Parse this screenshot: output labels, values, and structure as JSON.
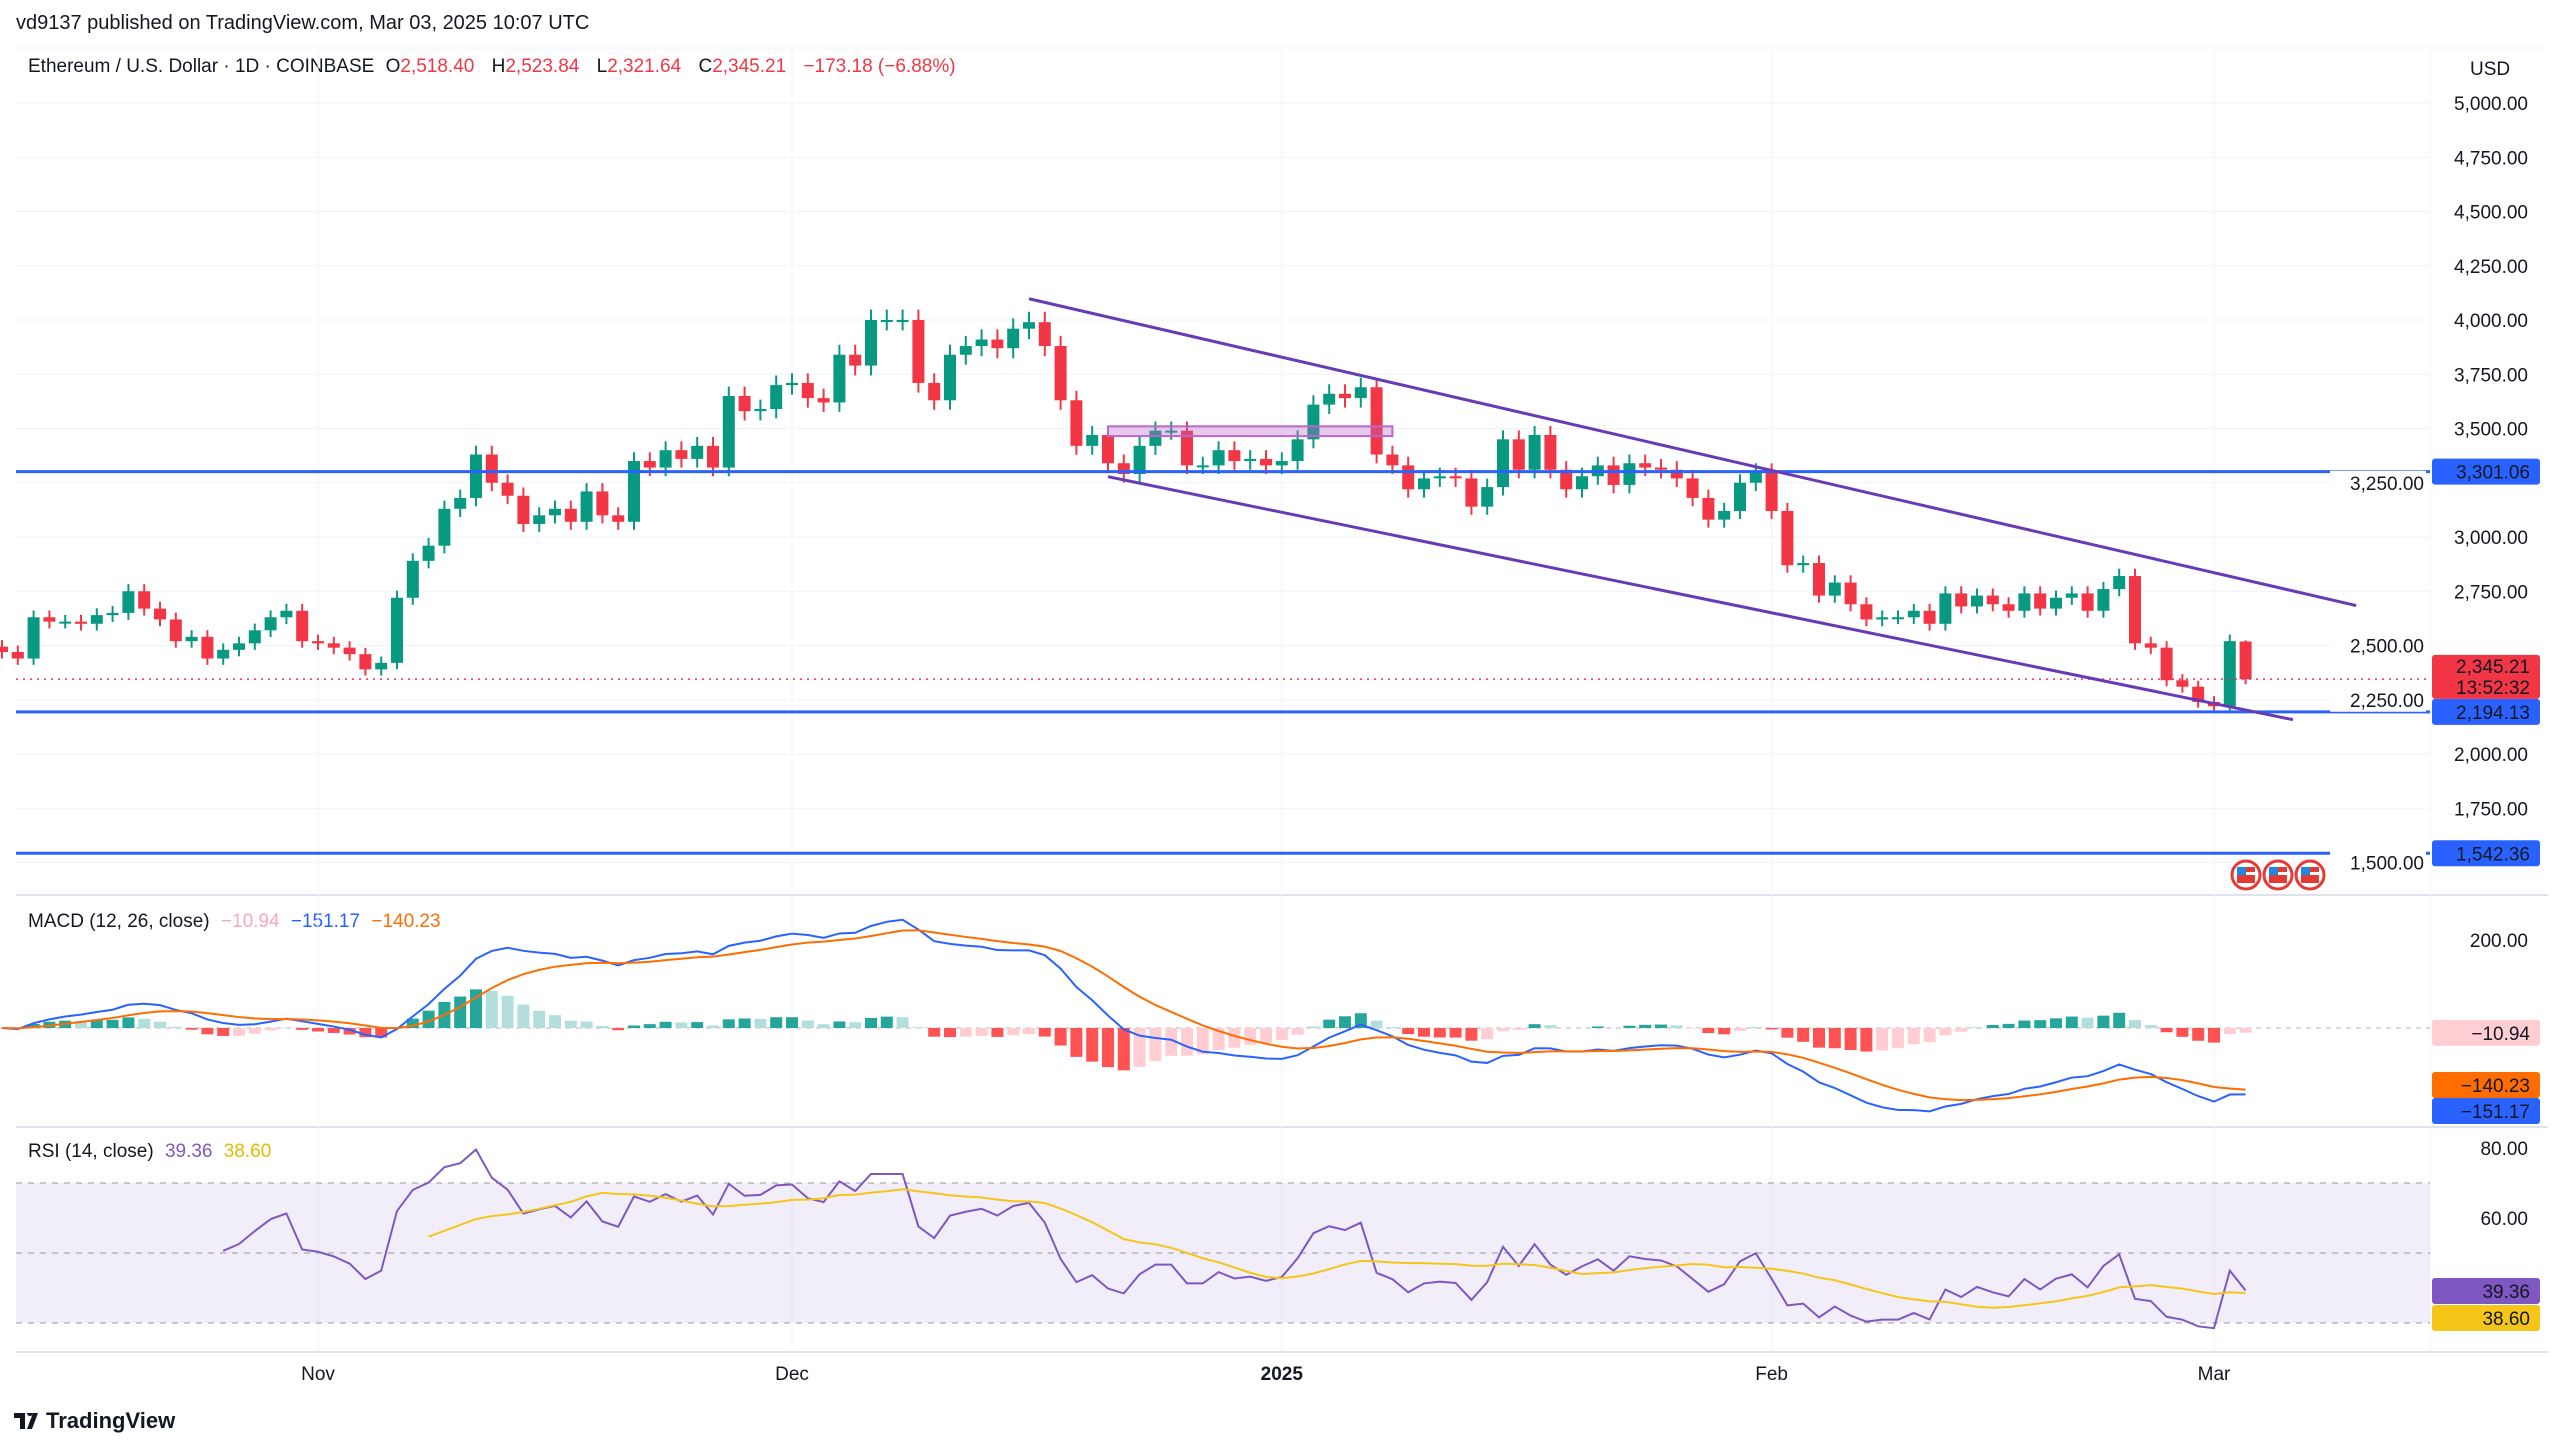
{
  "header": {
    "published": "vd9137 published on TradingView.com, Mar 03, 2025 10:07 UTC"
  },
  "legend": {
    "symbol": "Ethereum / U.S. Dollar · 1D · COINBASE",
    "o_label": "O",
    "o": "2,518.40",
    "h_label": "H",
    "h": "2,523.84",
    "l_label": "L",
    "l": "2,321.64",
    "c_label": "C",
    "c": "2,345.21",
    "change": "−173.18 (−6.88%)"
  },
  "currency": "USD",
  "colors": {
    "up": "#089981",
    "down": "#f23645",
    "hline": "#2962ff",
    "channel": "#673ab7",
    "macd": "#2962ff",
    "signal": "#ff6d00",
    "rsi": "#7e57c2",
    "rsi_ma": "#f5c518"
  },
  "chart_data": {
    "type": "candlestick",
    "x_ticks": [
      "Nov",
      "Dec",
      "2025",
      "Feb",
      "Mar"
    ],
    "price_ticks": [
      "5,000.00",
      "4,750.00",
      "4,500.00",
      "4,250.00",
      "4,000.00",
      "3,750.00",
      "3,500.00",
      "3,250.00",
      "3,000.00",
      "2,750.00",
      "2,500.00",
      "2,250.00",
      "2,000.00",
      "1,750.00",
      "1,500.00"
    ],
    "ylim": [
      1500,
      5000
    ],
    "closes": [
      2470,
      2440,
      2630,
      2610,
      2610,
      2600,
      2640,
      2650,
      2750,
      2670,
      2620,
      2520,
      2540,
      2440,
      2480,
      2510,
      2570,
      2630,
      2660,
      2520,
      2510,
      2490,
      2460,
      2390,
      2420,
      2720,
      2890,
      2960,
      3130,
      3180,
      3380,
      3250,
      3190,
      3060,
      3100,
      3130,
      3070,
      3210,
      3100,
      3070,
      3350,
      3320,
      3400,
      3360,
      3420,
      3320,
      3650,
      3580,
      3590,
      3700,
      3710,
      3640,
      3620,
      3840,
      3790,
      4000,
      4000,
      4000,
      3710,
      3630,
      3840,
      3880,
      3910,
      3870,
      3960,
      3990,
      3880,
      3630,
      3420,
      3470,
      3340,
      3290,
      3420,
      3490,
      3490,
      3330,
      3330,
      3400,
      3350,
      3360,
      3330,
      3350,
      3450,
      3610,
      3660,
      3640,
      3690,
      3380,
      3330,
      3220,
      3270,
      3280,
      3270,
      3140,
      3230,
      3450,
      3310,
      3470,
      3310,
      3220,
      3280,
      3330,
      3240,
      3340,
      3320,
      3310,
      3270,
      3180,
      3080,
      3120,
      3250,
      3300,
      3120,
      2870,
      2880,
      2730,
      2790,
      2690,
      2620,
      2630,
      2630,
      2660,
      2600,
      2740,
      2680,
      2730,
      2690,
      2660,
      2740,
      2670,
      2720,
      2740,
      2660,
      2760,
      2820,
      2510,
      2490,
      2340,
      2310,
      2240,
      2220,
      2520,
      2345.21
    ],
    "last_bar": {
      "open": 2518.4,
      "high": 2523.84,
      "low": 2321.64,
      "close": 2345.21
    },
    "horizontal_lines": [
      {
        "price": 3301.06,
        "label": "3,301.06"
      },
      {
        "price": 2194.13,
        "label": "2,194.13"
      },
      {
        "price": 1542.36,
        "label": "1,542.36"
      }
    ],
    "channel": [
      {
        "from": [
          "2024-12-16",
          4098
        ],
        "to": [
          "2025-03-10",
          2684
        ]
      },
      {
        "from": [
          "2024-12-21",
          3278
        ],
        "to": [
          "2025-03-06",
          2158
        ]
      }
    ],
    "zone": {
      "from": [
        "2024-12-21",
        3510
      ],
      "to": [
        "2025-01-08",
        3465
      ]
    },
    "last_price": {
      "label": "2,345.21",
      "countdown": "13:52:32"
    },
    "macd": {
      "title": "MACD (12, 26, close)",
      "hist": "−10.94",
      "macd": "−151.17",
      "signal": "−140.23",
      "ticks": [
        "200.00"
      ]
    },
    "rsi": {
      "title": "RSI (14, close)",
      "rsi": "39.36",
      "ma": "38.60",
      "ticks": [
        "80.00",
        "60.00"
      ],
      "bands": [
        70,
        50,
        30
      ]
    }
  }
}
